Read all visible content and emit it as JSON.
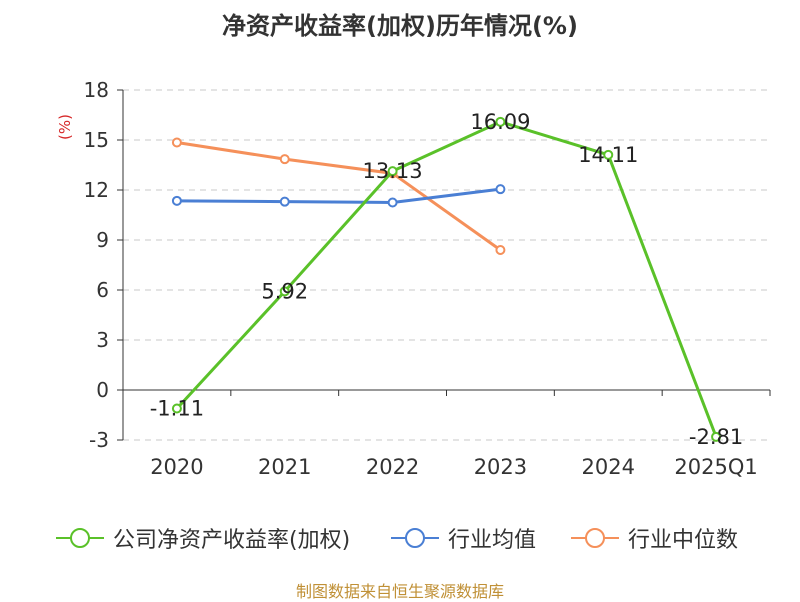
{
  "title": "净资产收益率(加权)历年情况(%)",
  "source": "制图数据来自恒生聚源数据库",
  "chart_data": {
    "type": "line",
    "title": "净资产收益率(加权)历年情况(%)",
    "ylabel": "(%)",
    "ylim": [
      -3,
      18
    ],
    "yticks": [
      -3,
      0,
      3,
      6,
      9,
      12,
      15,
      18
    ],
    "categories": [
      "2020",
      "2021",
      "2022",
      "2023",
      "2024",
      "2025Q1"
    ],
    "grid": true,
    "legend_position": "bottom",
    "series": [
      {
        "name": "公司净资产收益率(加权)",
        "color": "#5ac129",
        "values": [
          -1.11,
          5.92,
          13.13,
          16.09,
          14.11,
          -2.81
        ],
        "show_labels": true
      },
      {
        "name": "行业均值",
        "color": "#4a7fd4",
        "values": [
          11.35,
          11.3,
          11.25,
          12.05,
          null,
          null
        ],
        "show_labels": false
      },
      {
        "name": "行业中位数",
        "color": "#f5905a",
        "values": [
          14.85,
          13.85,
          13.0,
          8.4,
          null,
          null
        ],
        "show_labels": false
      }
    ]
  }
}
